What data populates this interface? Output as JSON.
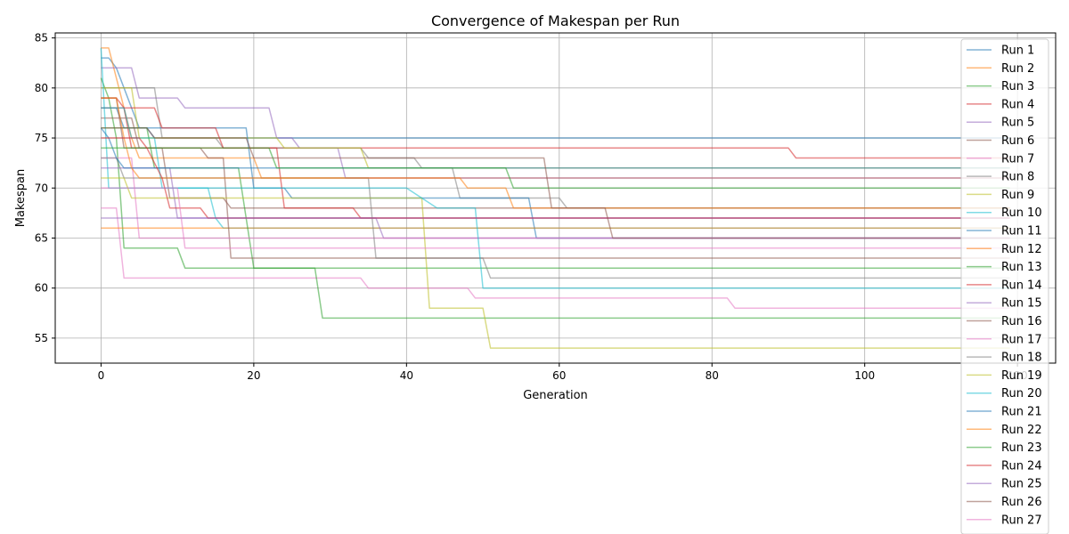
{
  "chart_data": {
    "type": "line",
    "title": "Convergence of Makespan per Run",
    "xlabel": "Generation",
    "ylabel": "Makespan",
    "xlim": [
      -6,
      125
    ],
    "ylim": [
      52.5,
      85.5
    ],
    "xticks": [
      0,
      20,
      40,
      60,
      80,
      100,
      120
    ],
    "yticks": [
      55,
      60,
      65,
      70,
      75,
      80,
      85
    ],
    "grid": true,
    "legend": "upper right",
    "colors": [
      "#1f77b4",
      "#ff7f0e",
      "#2ca02c",
      "#d62728",
      "#9467bd",
      "#8c564b",
      "#e377c2",
      "#7f7f7f",
      "#bcbd22",
      "#17becf"
    ],
    "series": [
      {
        "name": "Run 1",
        "points": [
          [
            0,
            83
          ],
          [
            1,
            83
          ],
          [
            2,
            82
          ],
          [
            3,
            80
          ],
          [
            4,
            78
          ],
          [
            5,
            76
          ],
          [
            6,
            76
          ],
          [
            7,
            75
          ],
          [
            119,
            75
          ]
        ]
      },
      {
        "name": "Run 2",
        "points": [
          [
            0,
            84
          ],
          [
            1,
            84
          ],
          [
            2,
            81
          ],
          [
            3,
            78
          ],
          [
            4,
            75
          ],
          [
            5,
            73
          ],
          [
            20,
            73
          ],
          [
            21,
            71
          ],
          [
            119,
            71
          ]
        ]
      },
      {
        "name": "Run 3",
        "points": [
          [
            0,
            81
          ],
          [
            1,
            79
          ],
          [
            2,
            75
          ],
          [
            3,
            64
          ],
          [
            10,
            64
          ],
          [
            11,
            62
          ],
          [
            119,
            62
          ]
        ]
      },
      {
        "name": "Run 4",
        "points": [
          [
            0,
            79
          ],
          [
            2,
            79
          ],
          [
            3,
            78
          ],
          [
            4,
            74
          ],
          [
            24,
            74
          ],
          [
            90,
            74
          ],
          [
            91,
            73
          ],
          [
            119,
            73
          ]
        ]
      },
      {
        "name": "Run 5",
        "points": [
          [
            0,
            82
          ],
          [
            4,
            82
          ],
          [
            5,
            79
          ],
          [
            10,
            79
          ],
          [
            11,
            78
          ],
          [
            22,
            78
          ],
          [
            23,
            75
          ],
          [
            25,
            75
          ],
          [
            26,
            74
          ],
          [
            31,
            74
          ],
          [
            32,
            71
          ],
          [
            119,
            71
          ]
        ]
      },
      {
        "name": "Run 6",
        "points": [
          [
            0,
            77
          ],
          [
            4,
            77
          ],
          [
            5,
            74
          ],
          [
            8,
            74
          ],
          [
            9,
            69
          ],
          [
            16,
            69
          ],
          [
            17,
            68
          ],
          [
            119,
            68
          ]
        ]
      },
      {
        "name": "Run 7",
        "points": [
          [
            0,
            68
          ],
          [
            2,
            68
          ],
          [
            3,
            61
          ],
          [
            34,
            61
          ],
          [
            35,
            60
          ],
          [
            48,
            60
          ],
          [
            49,
            59
          ],
          [
            82,
            59
          ],
          [
            83,
            58
          ],
          [
            119,
            58
          ]
        ]
      },
      {
        "name": "Run 8",
        "points": [
          [
            0,
            80
          ],
          [
            7,
            80
          ],
          [
            8,
            75
          ],
          [
            15,
            75
          ],
          [
            16,
            74
          ],
          [
            34,
            74
          ],
          [
            35,
            73
          ],
          [
            41,
            73
          ],
          [
            42,
            72
          ],
          [
            46,
            72
          ],
          [
            47,
            69
          ],
          [
            60,
            69
          ],
          [
            61,
            68
          ],
          [
            119,
            68
          ]
        ]
      },
      {
        "name": "Run 9",
        "points": [
          [
            0,
            80
          ],
          [
            4,
            80
          ],
          [
            5,
            75
          ],
          [
            23,
            75
          ],
          [
            24,
            74
          ],
          [
            34,
            74
          ],
          [
            35,
            72
          ],
          [
            119,
            72
          ]
        ]
      },
      {
        "name": "Run 10",
        "points": [
          [
            0,
            84
          ],
          [
            1,
            70
          ],
          [
            14,
            70
          ],
          [
            15,
            67
          ],
          [
            16,
            66
          ],
          [
            119,
            66
          ]
        ]
      },
      {
        "name": "Run 11",
        "points": [
          [
            0,
            78
          ],
          [
            2,
            78
          ],
          [
            3,
            76
          ],
          [
            19,
            76
          ],
          [
            20,
            70
          ],
          [
            24,
            70
          ],
          [
            25,
            69
          ],
          [
            56,
            69
          ],
          [
            57,
            65
          ],
          [
            119,
            65
          ]
        ]
      },
      {
        "name": "Run 12",
        "points": [
          [
            0,
            66
          ],
          [
            119,
            66
          ]
        ]
      },
      {
        "name": "Run 13",
        "points": [
          [
            0,
            76
          ],
          [
            6,
            76
          ],
          [
            7,
            72
          ],
          [
            18,
            72
          ],
          [
            19,
            67
          ],
          [
            20,
            62
          ],
          [
            28,
            62
          ],
          [
            29,
            57
          ],
          [
            119,
            57
          ]
        ]
      },
      {
        "name": "Run 14",
        "points": [
          [
            0,
            78
          ],
          [
            4,
            78
          ],
          [
            7,
            78
          ],
          [
            8,
            76
          ],
          [
            15,
            76
          ],
          [
            16,
            74
          ],
          [
            23,
            74
          ],
          [
            24,
            68
          ],
          [
            33,
            68
          ],
          [
            34,
            67
          ],
          [
            119,
            67
          ]
        ]
      },
      {
        "name": "Run 15",
        "points": [
          [
            0,
            72
          ],
          [
            9,
            72
          ],
          [
            10,
            67
          ],
          [
            36,
            67
          ],
          [
            37,
            65
          ],
          [
            119,
            65
          ]
        ]
      },
      {
        "name": "Run 16",
        "points": [
          [
            0,
            79
          ],
          [
            2,
            79
          ],
          [
            3,
            74
          ],
          [
            13,
            74
          ],
          [
            14,
            73
          ],
          [
            16,
            73
          ],
          [
            17,
            63
          ],
          [
            119,
            63
          ]
        ]
      },
      {
        "name": "Run 17",
        "points": [
          [
            0,
            73
          ],
          [
            4,
            73
          ],
          [
            5,
            65
          ],
          [
            119,
            65
          ]
        ]
      },
      {
        "name": "Run 18",
        "points": [
          [
            0,
            73
          ],
          [
            2,
            73
          ],
          [
            3,
            71
          ],
          [
            35,
            71
          ],
          [
            36,
            63
          ],
          [
            50,
            63
          ],
          [
            51,
            61
          ],
          [
            119,
            61
          ]
        ]
      },
      {
        "name": "Run 19",
        "points": [
          [
            0,
            71
          ],
          [
            3,
            71
          ],
          [
            4,
            69
          ],
          [
            42,
            69
          ],
          [
            43,
            58
          ],
          [
            50,
            58
          ],
          [
            51,
            54
          ],
          [
            119,
            54
          ]
        ]
      },
      {
        "name": "Run 20",
        "points": [
          [
            0,
            78
          ],
          [
            3,
            78
          ],
          [
            4,
            75
          ],
          [
            7,
            75
          ],
          [
            8,
            70
          ],
          [
            40,
            70
          ],
          [
            44,
            68
          ],
          [
            49,
            68
          ],
          [
            50,
            60
          ],
          [
            119,
            60
          ]
        ]
      },
      {
        "name": "Run 21",
        "points": [
          [
            0,
            76
          ],
          [
            1,
            75
          ],
          [
            2,
            73
          ],
          [
            3,
            72
          ],
          [
            119,
            72
          ]
        ]
      },
      {
        "name": "Run 22",
        "points": [
          [
            0,
            79
          ],
          [
            2,
            79
          ],
          [
            3,
            75
          ],
          [
            4,
            72
          ],
          [
            5,
            71
          ],
          [
            47,
            71
          ],
          [
            48,
            70
          ],
          [
            53,
            70
          ],
          [
            54,
            68
          ],
          [
            119,
            68
          ]
        ]
      },
      {
        "name": "Run 23",
        "points": [
          [
            0,
            74
          ],
          [
            22,
            74
          ],
          [
            23,
            72
          ],
          [
            53,
            72
          ],
          [
            54,
            70
          ],
          [
            119,
            70
          ]
        ]
      },
      {
        "name": "Run 24",
        "points": [
          [
            0,
            75
          ],
          [
            5,
            75
          ],
          [
            6,
            74
          ],
          [
            8,
            71
          ],
          [
            9,
            68
          ],
          [
            13,
            68
          ],
          [
            14,
            67
          ],
          [
            119,
            67
          ]
        ]
      },
      {
        "name": "Run 25",
        "points": [
          [
            0,
            67
          ],
          [
            119,
            67
          ]
        ]
      },
      {
        "name": "Run 26",
        "points": [
          [
            0,
            76
          ],
          [
            6,
            76
          ],
          [
            7,
            75
          ],
          [
            19,
            75
          ],
          [
            20,
            73
          ],
          [
            58,
            73
          ],
          [
            59,
            68
          ],
          [
            66,
            68
          ],
          [
            67,
            65
          ],
          [
            119,
            65
          ]
        ]
      },
      {
        "name": "Run 27",
        "points": [
          [
            0,
            70
          ],
          [
            10,
            70
          ],
          [
            11,
            64
          ],
          [
            119,
            64
          ]
        ]
      }
    ]
  }
}
